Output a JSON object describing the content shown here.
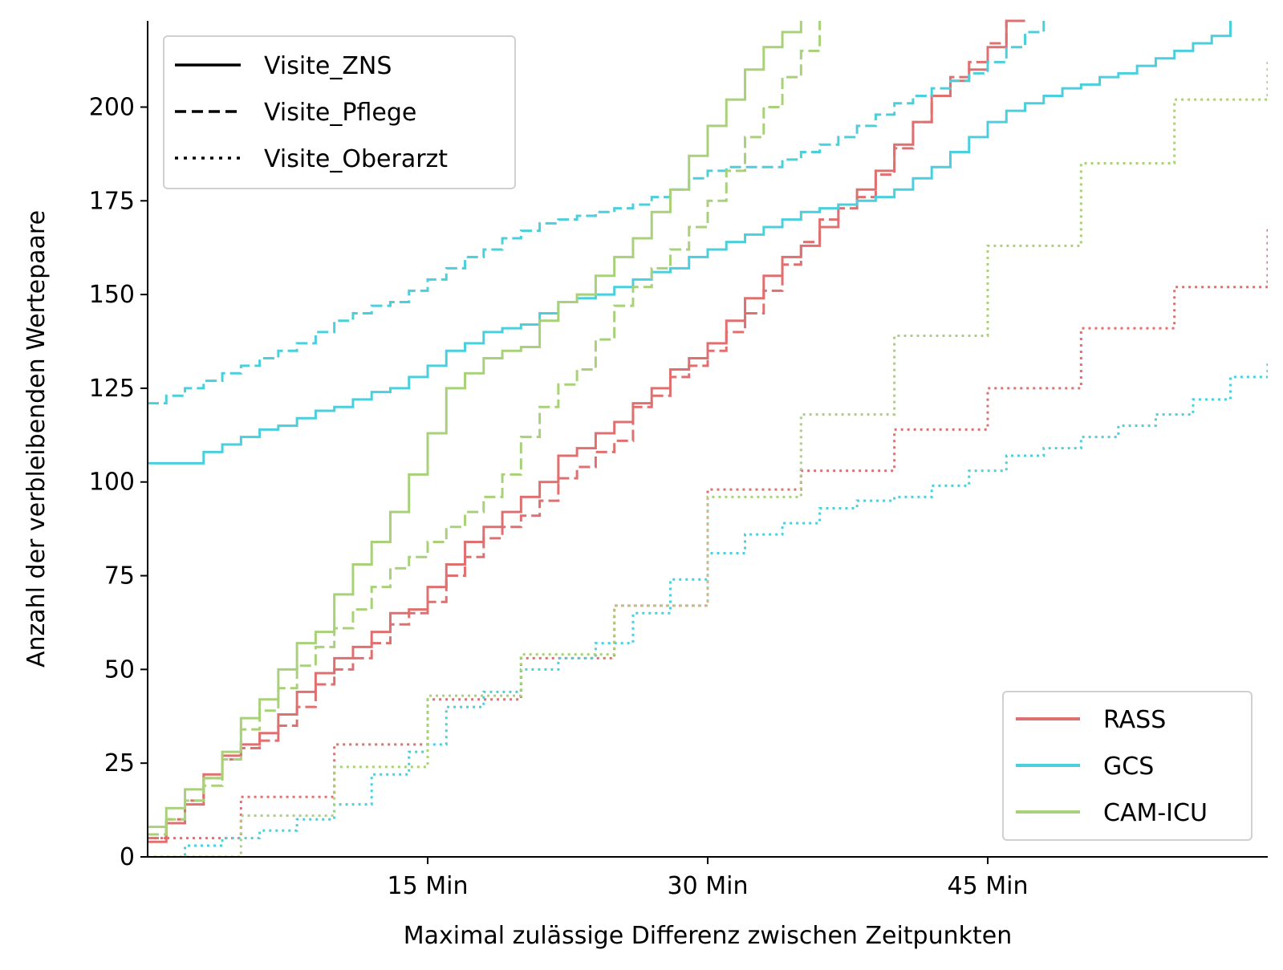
{
  "chart_data": {
    "type": "line",
    "title": "",
    "xlabel": "Maximal zulässige Differenz zwischen Zeitpunkten",
    "ylabel": "Anzahl der verbleibenden Wertepaare",
    "xlim": [
      0,
      60
    ],
    "ylim": [
      0,
      223
    ],
    "x_unit": "Min",
    "x_ticks": [
      15,
      30,
      45
    ],
    "x_tick_labels": [
      "15 Min",
      "30 Min",
      "45 Min"
    ],
    "y_ticks": [
      0,
      25,
      50,
      75,
      100,
      125,
      150,
      175,
      200
    ],
    "y_tick_labels": [
      "0",
      "25",
      "50",
      "75",
      "100",
      "125",
      "150",
      "175",
      "200"
    ],
    "grid": false,
    "legend_linestyle": {
      "position": "top-left",
      "entries": [
        {
          "label": "Visite_ZNS",
          "dash": "solid"
        },
        {
          "label": "Visite_Pflege",
          "dash": "dashed"
        },
        {
          "label": "Visite_Oberarzt",
          "dash": "dotted"
        }
      ]
    },
    "legend_color": {
      "position": "bottom-right",
      "entries": [
        {
          "label": "RASS",
          "color": "#e07070"
        },
        {
          "label": "GCS",
          "color": "#4ccfdd"
        },
        {
          "label": "CAM-ICU",
          "color": "#a9d17a"
        }
      ]
    },
    "series": [
      {
        "score": "RASS",
        "visit": "Visite_ZNS",
        "color": "#e07070",
        "dash": "solid",
        "x": [
          0,
          1,
          2,
          3,
          4,
          5,
          6,
          7,
          8,
          9,
          10,
          11,
          12,
          13,
          14,
          15,
          16,
          17,
          18,
          19,
          20,
          21,
          22,
          23,
          24,
          25,
          26,
          27,
          28,
          29,
          30,
          31,
          32,
          33,
          34,
          35,
          36,
          37,
          38,
          39,
          40,
          41,
          42,
          43,
          44,
          45,
          46,
          47
        ],
        "y": [
          4,
          9,
          14,
          22,
          27,
          30,
          33,
          38,
          44,
          49,
          53,
          56,
          60,
          65,
          66,
          72,
          78,
          84,
          88,
          92,
          96,
          100,
          107,
          109,
          113,
          116,
          121,
          125,
          130,
          133,
          137,
          143,
          149,
          155,
          160,
          163,
          168,
          174,
          178,
          183,
          190,
          196,
          203,
          207,
          210,
          216,
          223,
          223
        ]
      },
      {
        "score": "RASS",
        "visit": "Visite_Pflege",
        "color": "#e07070",
        "dash": "dashed",
        "x": [
          0,
          1,
          2,
          3,
          4,
          5,
          6,
          7,
          8,
          9,
          10,
          11,
          12,
          13,
          14,
          15,
          16,
          17,
          18,
          19,
          20,
          21,
          22,
          23,
          24,
          25,
          26,
          27,
          28,
          29,
          30,
          31,
          32,
          33,
          34,
          35,
          36,
          37,
          38,
          39,
          40,
          41,
          42,
          43,
          44,
          45,
          46,
          47
        ],
        "y": [
          5,
          10,
          15,
          21,
          26,
          29,
          31,
          35,
          40,
          46,
          50,
          53,
          57,
          62,
          65,
          68,
          75,
          80,
          85,
          88,
          91,
          95,
          101,
          104,
          108,
          111,
          120,
          123,
          128,
          131,
          135,
          140,
          145,
          151,
          158,
          164,
          170,
          173,
          176,
          182,
          189,
          196,
          203,
          208,
          212,
          217,
          223,
          223
        ]
      },
      {
        "score": "RASS",
        "visit": "Visite_Oberarzt",
        "color": "#e07070",
        "dash": "dotted",
        "x": [
          0,
          5,
          5,
          10,
          10,
          15,
          15,
          20,
          20,
          25,
          25,
          30,
          30,
          35,
          35,
          40,
          40,
          45,
          45,
          50,
          50,
          55,
          55,
          60
        ],
        "y": [
          5,
          5,
          16,
          16,
          30,
          30,
          42,
          42,
          53,
          53,
          67,
          67,
          98,
          98,
          103,
          103,
          114,
          114,
          125,
          125,
          141,
          141,
          152,
          168
        ]
      },
      {
        "score": "GCS",
        "visit": "Visite_ZNS",
        "color": "#4ccfdd",
        "dash": "solid",
        "x": [
          0,
          2,
          3,
          4,
          5,
          6,
          7,
          8,
          9,
          10,
          11,
          12,
          13,
          14,
          15,
          16,
          17,
          18,
          19,
          20,
          21,
          22,
          23,
          24,
          25,
          26,
          27,
          28,
          29,
          30,
          31,
          32,
          33,
          34,
          35,
          36,
          37,
          38,
          39,
          40,
          41,
          42,
          43,
          44,
          45,
          46,
          47,
          48,
          49,
          50,
          51,
          52,
          53,
          54,
          55,
          56,
          57,
          58
        ],
        "y": [
          105,
          105,
          108,
          110,
          112,
          114,
          115,
          117,
          119,
          120,
          122,
          124,
          125,
          128,
          131,
          135,
          137,
          140,
          141,
          142,
          145,
          148,
          149,
          150,
          152,
          154,
          156,
          157,
          160,
          162,
          164,
          166,
          168,
          170,
          172,
          173,
          174,
          175,
          176,
          178,
          181,
          184,
          188,
          192,
          196,
          199,
          201,
          203,
          205,
          206,
          208,
          209,
          211,
          213,
          215,
          217,
          219,
          223
        ]
      },
      {
        "score": "GCS",
        "visit": "Visite_Pflege",
        "color": "#4ccfdd",
        "dash": "dashed",
        "x": [
          0,
          1,
          2,
          3,
          4,
          5,
          6,
          7,
          8,
          9,
          10,
          11,
          12,
          13,
          14,
          15,
          16,
          17,
          18,
          19,
          20,
          21,
          22,
          23,
          24,
          25,
          26,
          27,
          28,
          29,
          30,
          31,
          32,
          33,
          34,
          35,
          36,
          37,
          38,
          39,
          40,
          41,
          42,
          43,
          44,
          45,
          46,
          47,
          48
        ],
        "y": [
          121,
          123,
          125,
          127,
          129,
          131,
          133,
          135,
          137,
          140,
          143,
          145,
          147,
          148,
          151,
          154,
          157,
          160,
          162,
          165,
          167,
          169,
          170,
          171,
          172,
          173,
          174,
          176,
          178,
          181,
          183,
          184,
          184,
          184,
          186,
          188,
          190,
          192,
          195,
          198,
          201,
          203,
          205,
          207,
          209,
          212,
          216,
          220,
          223
        ]
      },
      {
        "score": "GCS",
        "visit": "Visite_Oberarzt",
        "color": "#4ccfdd",
        "dash": "dotted",
        "x": [
          0,
          2,
          4,
          6,
          8,
          10,
          12,
          14,
          15,
          16,
          18,
          20,
          22,
          24,
          26,
          28,
          30,
          32,
          34,
          36,
          38,
          40,
          42,
          44,
          46,
          48,
          50,
          52,
          54,
          56,
          58,
          60
        ],
        "y": [
          0,
          3,
          5,
          7,
          10,
          14,
          22,
          28,
          30,
          40,
          44,
          50,
          53,
          57,
          65,
          74,
          81,
          86,
          89,
          93,
          95,
          96,
          99,
          103,
          107,
          109,
          112,
          115,
          118,
          122,
          128,
          132
        ]
      },
      {
        "score": "CAM-ICU",
        "visit": "Visite_ZNS",
        "color": "#a9d17a",
        "dash": "solid",
        "x": [
          0,
          1,
          2,
          3,
          4,
          5,
          6,
          7,
          8,
          9,
          10,
          11,
          12,
          13,
          14,
          15,
          16,
          17,
          18,
          19,
          20,
          21,
          22,
          23,
          24,
          25,
          26,
          27,
          28,
          29,
          30,
          31,
          32,
          33,
          34,
          35
        ],
        "y": [
          8,
          13,
          18,
          21,
          28,
          37,
          42,
          50,
          57,
          60,
          70,
          78,
          84,
          92,
          102,
          113,
          125,
          129,
          133,
          135,
          136,
          143,
          148,
          150,
          155,
          160,
          165,
          172,
          178,
          187,
          195,
          202,
          210,
          216,
          220,
          223
        ]
      },
      {
        "score": "CAM-ICU",
        "visit": "Visite_Pflege",
        "color": "#a9d17a",
        "dash": "dashed",
        "x": [
          0,
          1,
          2,
          3,
          4,
          5,
          6,
          7,
          8,
          9,
          10,
          11,
          12,
          13,
          14,
          15,
          16,
          17,
          18,
          19,
          20,
          21,
          22,
          23,
          24,
          25,
          26,
          27,
          28,
          29,
          30,
          31,
          32,
          33,
          34,
          35,
          36
        ],
        "y": [
          6,
          10,
          15,
          19,
          26,
          34,
          39,
          45,
          51,
          56,
          61,
          66,
          72,
          77,
          80,
          84,
          88,
          92,
          96,
          102,
          112,
          120,
          126,
          130,
          138,
          147,
          152,
          157,
          162,
          168,
          175,
          183,
          192,
          200,
          208,
          215,
          223
        ]
      },
      {
        "score": "CAM-ICU",
        "visit": "Visite_Oberarzt",
        "color": "#a9d17a",
        "dash": "dotted",
        "x": [
          0,
          5,
          5,
          10,
          10,
          15,
          15,
          20,
          20,
          25,
          25,
          30,
          30,
          35,
          35,
          40,
          40,
          45,
          45,
          50,
          50,
          55,
          55,
          60
        ],
        "y": [
          0,
          0,
          11,
          11,
          24,
          24,
          43,
          43,
          54,
          54,
          67,
          67,
          96,
          96,
          118,
          118,
          139,
          139,
          163,
          163,
          185,
          185,
          202,
          213
        ]
      }
    ]
  }
}
